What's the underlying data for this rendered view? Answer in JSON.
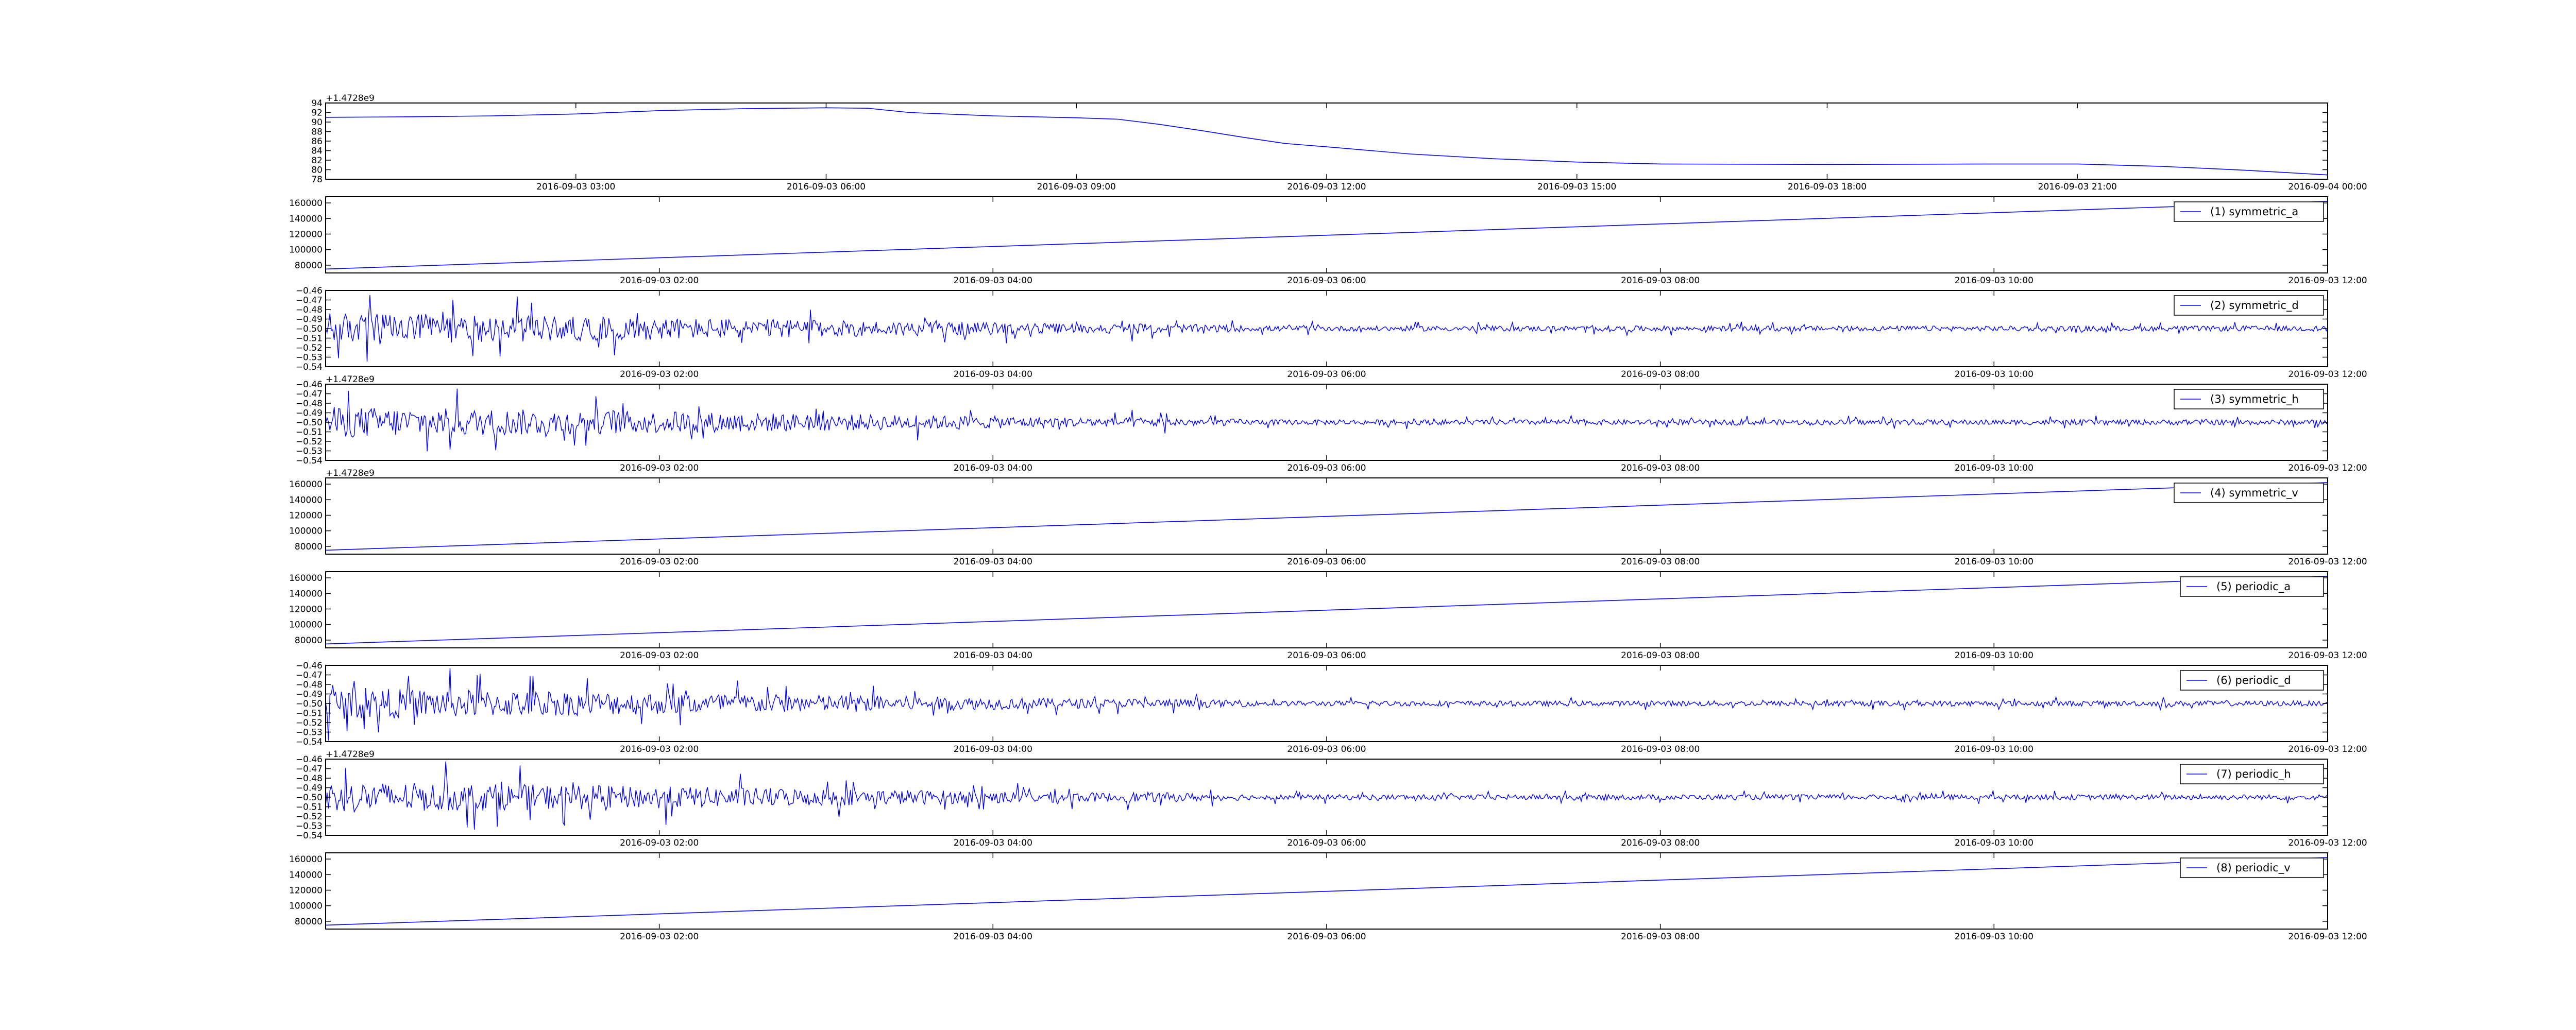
{
  "chart_data": [
    {
      "type": "line",
      "title": "",
      "xlabel": "",
      "ylabel": "",
      "x_range": [
        "2016-09-03 00:00",
        "2016-09-04 00:00"
      ],
      "x_ticks": [
        "2016-09-03 03:00",
        "2016-09-03 06:00",
        "2016-09-03 09:00",
        "2016-09-03 12:00",
        "2016-09-03 15:00",
        "2016-09-03 18:00",
        "2016-09-03 21:00",
        "2016-09-04 00:00"
      ],
      "ylim": [
        78,
        94
      ],
      "y_ticks": [
        "78",
        "80",
        "82",
        "84",
        "86",
        "88",
        "90",
        "92",
        "94"
      ],
      "y_offset_label": "+1.4728e9",
      "grid": false,
      "series": [
        {
          "x": [
            "2016-09-03 00:00",
            "2016-09-03 01:00",
            "2016-09-03 02:00",
            "2016-09-03 03:00",
            "2016-09-03 04:00",
            "2016-09-03 05:00",
            "2016-09-03 06:00",
            "2016-09-03 06:30",
            "2016-09-03 07:00",
            "2016-09-03 08:00",
            "2016-09-03 09:00",
            "2016-09-03 09:30",
            "2016-09-03 10:00",
            "2016-09-03 10:30",
            "2016-09-03 11:00",
            "2016-09-03 11:30",
            "2016-09-03 12:00",
            "2016-09-03 13:00",
            "2016-09-03 14:00",
            "2016-09-03 15:00",
            "2016-09-03 16:00",
            "2016-09-03 18:00",
            "2016-09-03 20:00",
            "2016-09-03 21:00",
            "2016-09-03 22:00",
            "2016-09-03 23:00",
            "2016-09-04 00:00"
          ],
          "values": [
            91.0,
            91.1,
            91.3,
            91.7,
            92.4,
            92.8,
            93.0,
            92.9,
            92.0,
            91.3,
            90.9,
            90.6,
            89.5,
            88.2,
            86.8,
            85.5,
            84.8,
            83.3,
            82.3,
            81.6,
            81.2,
            81.1,
            81.2,
            81.2,
            80.7,
            79.9,
            78.9
          ]
        }
      ]
    },
    {
      "type": "line",
      "x_ticks": [
        "2016-09-03 02:00",
        "2016-09-03 04:00",
        "2016-09-03 06:00",
        "2016-09-03 08:00",
        "2016-09-03 10:00",
        "2016-09-03 12:00"
      ],
      "x_range": [
        "2016-09-03 00:00",
        "2016-09-03 12:00"
      ],
      "ylim": [
        70000,
        168000
      ],
      "y_ticks": [
        "80000",
        "100000",
        "120000",
        "140000",
        "160000"
      ],
      "y_offset_label": "",
      "legend": "upper right",
      "grid": false,
      "series": [
        {
          "name": "(1) symmetric_a",
          "x": [
            "2016-09-03 00:00",
            "2016-09-03 12:00"
          ],
          "values": [
            75000,
            162000
          ]
        }
      ]
    },
    {
      "type": "line",
      "x_ticks": [
        "2016-09-03 02:00",
        "2016-09-03 04:00",
        "2016-09-03 06:00",
        "2016-09-03 08:00",
        "2016-09-03 10:00",
        "2016-09-03 12:00"
      ],
      "x_range": [
        "2016-09-03 00:00",
        "2016-09-03 12:00"
      ],
      "ylim": [
        -0.54,
        -0.46
      ],
      "y_ticks": [
        "−0.54",
        "−0.53",
        "−0.52",
        "−0.51",
        "−0.50",
        "−0.49",
        "−0.48",
        "−0.47",
        "−0.46"
      ],
      "y_offset_label": "",
      "legend": "upper right",
      "grid": false,
      "series": [
        {
          "name": "(2) symmetric_d",
          "baseline": -0.5,
          "approx_amplitude_start": 0.03,
          "approx_amplitude_end": 0.005
        }
      ]
    },
    {
      "type": "line",
      "x_ticks": [
        "2016-09-03 02:00",
        "2016-09-03 04:00",
        "2016-09-03 06:00",
        "2016-09-03 08:00",
        "2016-09-03 10:00",
        "2016-09-03 12:00"
      ],
      "x_range": [
        "2016-09-03 00:00",
        "2016-09-03 12:00"
      ],
      "ylim": [
        -0.54,
        -0.46
      ],
      "y_ticks": [
        "−0.54",
        "−0.53",
        "−0.52",
        "−0.51",
        "−0.50",
        "−0.49",
        "−0.48",
        "−0.47",
        "−0.46"
      ],
      "y_offset_label": "+1.4728e9",
      "legend": "upper right",
      "grid": false,
      "series": [
        {
          "name": "(3) symmetric_h",
          "baseline": -0.5,
          "approx_amplitude_start": 0.03,
          "approx_amplitude_end": 0.005
        }
      ]
    },
    {
      "type": "line",
      "x_ticks": [
        "2016-09-03 02:00",
        "2016-09-03 04:00",
        "2016-09-03 06:00",
        "2016-09-03 08:00",
        "2016-09-03 10:00",
        "2016-09-03 12:00"
      ],
      "x_range": [
        "2016-09-03 00:00",
        "2016-09-03 12:00"
      ],
      "ylim": [
        70000,
        168000
      ],
      "y_ticks": [
        "80000",
        "100000",
        "120000",
        "140000",
        "160000"
      ],
      "y_offset_label": "+1.4728e9",
      "legend": "upper right",
      "grid": false,
      "series": [
        {
          "name": "(4) symmetric_v",
          "x": [
            "2016-09-03 00:00",
            "2016-09-03 12:00"
          ],
          "values": [
            75000,
            162000
          ]
        }
      ]
    },
    {
      "type": "line",
      "x_ticks": [
        "2016-09-03 02:00",
        "2016-09-03 04:00",
        "2016-09-03 06:00",
        "2016-09-03 08:00",
        "2016-09-03 10:00",
        "2016-09-03 12:00"
      ],
      "x_range": [
        "2016-09-03 00:00",
        "2016-09-03 12:00"
      ],
      "ylim": [
        70000,
        168000
      ],
      "y_ticks": [
        "80000",
        "100000",
        "120000",
        "140000",
        "160000"
      ],
      "y_offset_label": "",
      "legend": "upper right",
      "grid": false,
      "series": [
        {
          "name": "(5) periodic_a",
          "x": [
            "2016-09-03 00:00",
            "2016-09-03 12:00"
          ],
          "values": [
            75000,
            162000
          ]
        }
      ]
    },
    {
      "type": "line",
      "x_ticks": [
        "2016-09-03 02:00",
        "2016-09-03 04:00",
        "2016-09-03 06:00",
        "2016-09-03 08:00",
        "2016-09-03 10:00",
        "2016-09-03 12:00"
      ],
      "x_range": [
        "2016-09-03 00:00",
        "2016-09-03 12:00"
      ],
      "ylim": [
        -0.54,
        -0.46
      ],
      "y_ticks": [
        "−0.54",
        "−0.53",
        "−0.52",
        "−0.51",
        "−0.50",
        "−0.49",
        "−0.48",
        "−0.47",
        "−0.46"
      ],
      "y_offset_label": "",
      "legend": "upper right",
      "grid": false,
      "series": [
        {
          "name": "(6) periodic_d",
          "baseline": -0.5,
          "approx_amplitude_start": 0.03,
          "approx_amplitude_end": 0.005
        }
      ]
    },
    {
      "type": "line",
      "x_ticks": [
        "2016-09-03 02:00",
        "2016-09-03 04:00",
        "2016-09-03 06:00",
        "2016-09-03 08:00",
        "2016-09-03 10:00",
        "2016-09-03 12:00"
      ],
      "x_range": [
        "2016-09-03 00:00",
        "2016-09-03 12:00"
      ],
      "ylim": [
        -0.54,
        -0.46
      ],
      "y_ticks": [
        "−0.54",
        "−0.53",
        "−0.52",
        "−0.51",
        "−0.50",
        "−0.49",
        "−0.48",
        "−0.47",
        "−0.46"
      ],
      "y_offset_label": "+1.4728e9",
      "legend": "upper right",
      "grid": false,
      "series": [
        {
          "name": "(7) periodic_h",
          "baseline": -0.5,
          "approx_amplitude_start": 0.03,
          "approx_amplitude_end": 0.005
        }
      ]
    },
    {
      "type": "line",
      "x_ticks": [
        "2016-09-03 02:00",
        "2016-09-03 04:00",
        "2016-09-03 06:00",
        "2016-09-03 08:00",
        "2016-09-03 10:00",
        "2016-09-03 12:00"
      ],
      "x_range": [
        "2016-09-03 00:00",
        "2016-09-03 12:00"
      ],
      "ylim": [
        70000,
        168000
      ],
      "y_ticks": [
        "80000",
        "100000",
        "120000",
        "140000",
        "160000"
      ],
      "y_offset_label": "",
      "legend": "upper right",
      "grid": false,
      "series": [
        {
          "name": "(8) periodic_v",
          "x": [
            "2016-09-03 00:00",
            "2016-09-03 12:00"
          ],
          "values": [
            75000,
            162000
          ]
        }
      ]
    }
  ]
}
